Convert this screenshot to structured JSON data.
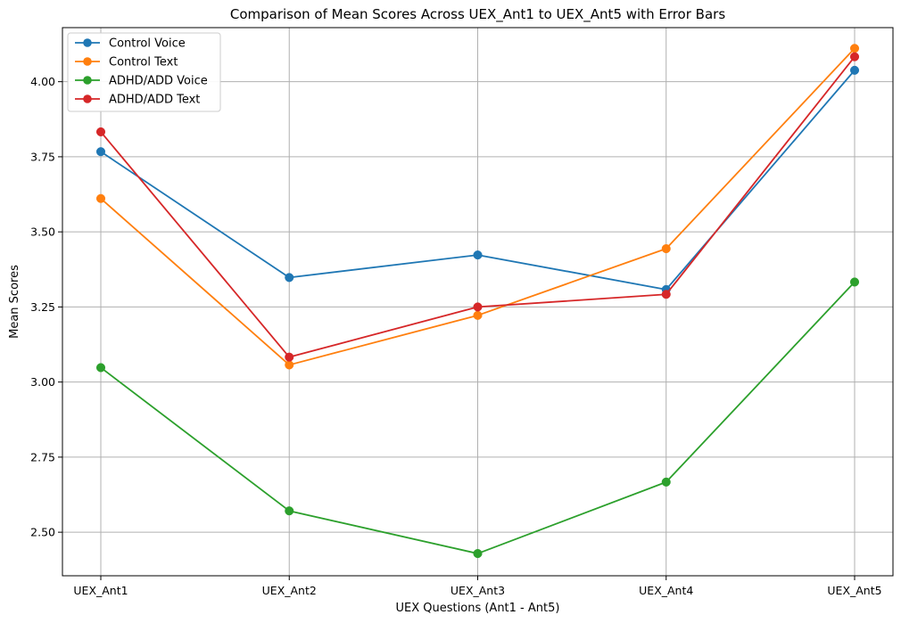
{
  "chart_data": {
    "type": "line",
    "title": "Comparison of Mean Scores Across UEX_Ant1 to UEX_Ant5 with Error Bars",
    "xlabel": "UEX Questions (Ant1 - Ant5)",
    "ylabel": "Mean Scores",
    "categories": [
      "UEX_Ant1",
      "UEX_Ant2",
      "UEX_Ant3",
      "UEX_Ant4",
      "UEX_Ant5"
    ],
    "ylim": [
      2.355,
      4.18
    ],
    "yticks": [
      2.5,
      2.75,
      3.0,
      3.25,
      3.5,
      3.75,
      4.0
    ],
    "ytick_labels": [
      "2.50",
      "2.75",
      "3.00",
      "3.25",
      "3.50",
      "3.75",
      "4.00"
    ],
    "grid": true,
    "legend_position": "top-left",
    "series": [
      {
        "name": "Control Voice",
        "color": "#1f77b4",
        "values": [
          3.767,
          3.348,
          3.423,
          3.308,
          4.038
        ]
      },
      {
        "name": "Control Text",
        "color": "#ff7f0e",
        "values": [
          3.611,
          3.057,
          3.222,
          3.444,
          4.111
        ]
      },
      {
        "name": "ADHD/ADD Voice",
        "color": "#2ca02c",
        "values": [
          3.048,
          2.571,
          2.429,
          2.667,
          3.333
        ]
      },
      {
        "name": "ADHD/ADD Text",
        "color": "#d62728",
        "values": [
          3.833,
          3.083,
          3.25,
          3.292,
          4.083
        ]
      }
    ]
  }
}
